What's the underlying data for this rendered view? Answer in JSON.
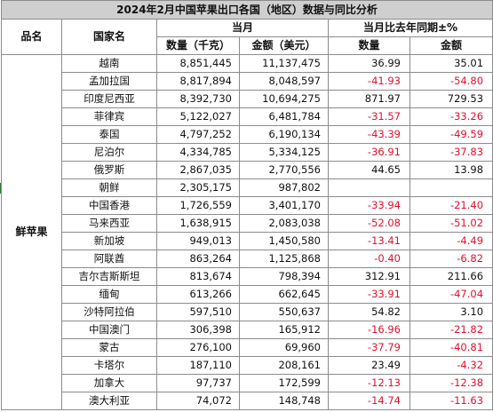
{
  "title": "2024年2月中国苹果出口各国（地区）数据与同比分析",
  "headers": {
    "product": "品名",
    "country": "国家名",
    "current_month": "当月",
    "yoy": "当月比去年同期±%",
    "qty": "数量（千克）",
    "amount": "金额（美元）",
    "yoy_qty": "数量",
    "yoy_amount": "金额"
  },
  "product": "鲜苹果",
  "rows": [
    {
      "country": "越南",
      "qty": "8,851,445",
      "amount": "11,137,475",
      "yoy_qty": "36.99",
      "yoy_amount": "35.01"
    },
    {
      "country": "孟加拉国",
      "qty": "8,817,894",
      "amount": "8,048,597",
      "yoy_qty": "-41.93",
      "yoy_amount": "-54.80"
    },
    {
      "country": "印度尼西亚",
      "qty": "8,392,730",
      "amount": "10,694,275",
      "yoy_qty": "871.97",
      "yoy_amount": "729.53"
    },
    {
      "country": "菲律宾",
      "qty": "5,122,027",
      "amount": "6,481,784",
      "yoy_qty": "-31.57",
      "yoy_amount": "-33.26"
    },
    {
      "country": "泰国",
      "qty": "4,797,252",
      "amount": "6,190,134",
      "yoy_qty": "-43.39",
      "yoy_amount": "-49.59"
    },
    {
      "country": "尼泊尔",
      "qty": "4,334,785",
      "amount": "5,334,125",
      "yoy_qty": "-36.91",
      "yoy_amount": "-37.83"
    },
    {
      "country": "俄罗斯",
      "qty": "2,867,035",
      "amount": "2,770,556",
      "yoy_qty": "44.65",
      "yoy_amount": "13.98"
    },
    {
      "country": "朝鲜",
      "qty": "2,305,175",
      "amount": "987,802",
      "yoy_qty": "",
      "yoy_amount": ""
    },
    {
      "country": "中国香港",
      "qty": "1,726,559",
      "amount": "3,401,170",
      "yoy_qty": "-33.94",
      "yoy_amount": "-21.40"
    },
    {
      "country": "马来西亚",
      "qty": "1,638,915",
      "amount": "2,083,038",
      "yoy_qty": "-52.08",
      "yoy_amount": "-51.02"
    },
    {
      "country": "新加坡",
      "qty": "949,013",
      "amount": "1,450,580",
      "yoy_qty": "-13.41",
      "yoy_amount": "-4.49"
    },
    {
      "country": "阿联酋",
      "qty": "863,264",
      "amount": "1,125,868",
      "yoy_qty": "-0.40",
      "yoy_amount": "-6.82"
    },
    {
      "country": "吉尔吉斯斯坦",
      "qty": "813,674",
      "amount": "798,394",
      "yoy_qty": "312.91",
      "yoy_amount": "211.66"
    },
    {
      "country": "缅甸",
      "qty": "613,266",
      "amount": "662,645",
      "yoy_qty": "-33.91",
      "yoy_amount": "-47.04"
    },
    {
      "country": "沙特阿拉伯",
      "qty": "597,510",
      "amount": "550,637",
      "yoy_qty": "54.82",
      "yoy_amount": "3.10"
    },
    {
      "country": "中国澳门",
      "qty": "306,398",
      "amount": "165,912",
      "yoy_qty": "-16.96",
      "yoy_amount": "-21.82"
    },
    {
      "country": "蒙古",
      "qty": "276,100",
      "amount": "69,960",
      "yoy_qty": "-37.79",
      "yoy_amount": "-40.81"
    },
    {
      "country": "卡塔尔",
      "qty": "187,110",
      "amount": "208,161",
      "yoy_qty": "23.49",
      "yoy_amount": "-4.32"
    },
    {
      "country": "加拿大",
      "qty": "97,737",
      "amount": "172,599",
      "yoy_qty": "-12.13",
      "yoy_amount": "-12.38"
    },
    {
      "country": "澳大利亚",
      "qty": "74,072",
      "amount": "148,748",
      "yoy_qty": "-14.74",
      "yoy_amount": "-11.63"
    }
  ],
  "colors": {
    "negative": "#e0102f",
    "title_bg": "#cfcfcf",
    "grid": "#8c8c8c"
  }
}
